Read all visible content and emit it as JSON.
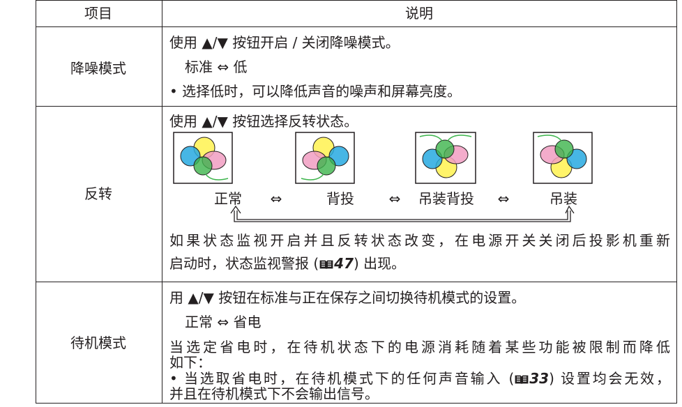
{
  "table": {
    "header": [
      "项目",
      "说明"
    ],
    "rows": [
      {
        "item": "降噪模式",
        "lines": [
          "使用 ▲/▼ 按钮开启 / 关闭降噪模式。",
          "标准 ⇔ 低",
          "• 选择低时，可以降低声音的噪声和屏幕亮度。"
        ]
      },
      {
        "item": "反转",
        "intro": "使用 ▲/▼ 按钮选择反转状态。",
        "modes": [
          "正常",
          "背投",
          "吊装背投",
          "吊装"
        ],
        "arrow": "⇔",
        "note": [
          "如果状态监视开启并且反转状态改变，在电源开关关闭后投影机重新",
          "启动时，状态监视警报 (",
          "47",
          ") 出现。"
        ]
      },
      {
        "item": "待机模式",
        "lines": [
          "用 ▲/▼ 按钮在标准与正在保存之间切换待机模式的设置。",
          "正常 ⇔ 省电",
          "当选定省电时，在待机状态下的电源消耗随着某些功能被限制而降低",
          "如下："
        ],
        "note": [
          "• 当选取省电时，在待机模式下的任何声音输入 (",
          "33",
          ") 设置均会无效，",
          "并且在待机模式下不会输出信号。"
        ]
      }
    ]
  }
}
